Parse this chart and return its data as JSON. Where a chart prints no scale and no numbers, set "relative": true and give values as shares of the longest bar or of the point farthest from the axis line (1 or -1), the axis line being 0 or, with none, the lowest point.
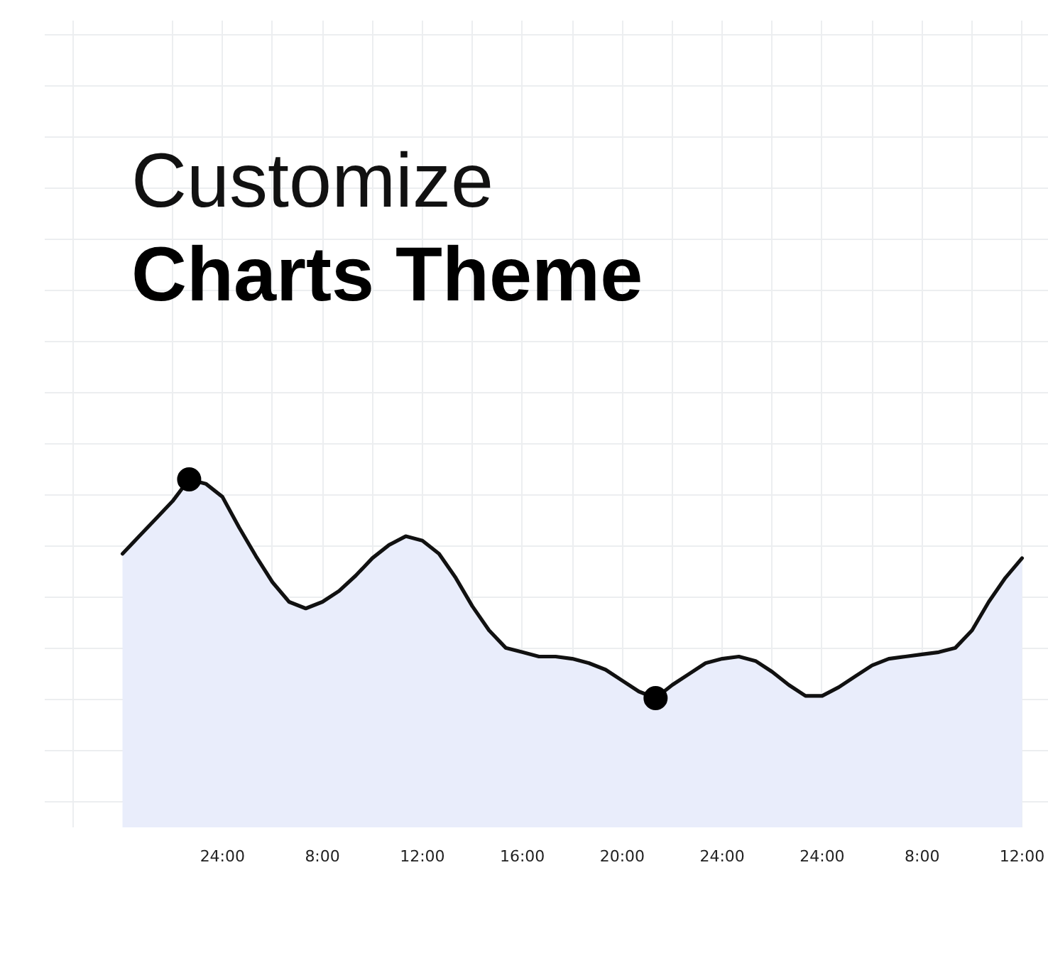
{
  "chart_data": {
    "type": "area",
    "title": "Customize",
    "subtitle": "Charts Theme",
    "relative": true,
    "tick_labels": "x",
    "grid": true,
    "categories": [
      null,
      null,
      null,
      null,
      null,
      null,
      "24:00",
      null,
      null,
      null,
      null,
      null,
      "8:00",
      null,
      null,
      null,
      null,
      null,
      "12:00",
      null,
      null,
      null,
      null,
      null,
      "16:00",
      null,
      null,
      null,
      null,
      null,
      "20:00",
      null,
      null,
      null,
      null,
      null,
      "24:00",
      null,
      null,
      null,
      null,
      null,
      "24:00",
      null,
      null,
      null,
      null,
      null,
      "8:00",
      null,
      null,
      null,
      null,
      null,
      "12:00"
    ],
    "series": [
      {
        "color": "#e9edfb",
        "values": [
          0.66,
          0.74,
          0.82,
          0.9,
          1.0,
          0.98,
          0.92,
          0.78,
          0.65,
          0.53,
          0.44,
          0.41,
          0.44,
          0.49,
          0.56,
          0.64,
          0.7,
          0.74,
          0.72,
          0.66,
          0.55,
          0.42,
          0.31,
          0.23,
          0.21,
          0.19,
          0.19,
          0.18,
          0.16,
          0.13,
          0.08,
          0.03,
          0.0,
          0.06,
          0.11,
          0.16,
          0.18,
          0.19,
          0.17,
          0.12,
          0.06,
          0.01,
          0.01,
          0.05,
          0.1,
          0.15,
          0.18,
          0.19,
          0.2,
          0.21,
          0.23,
          0.31,
          0.44,
          0.55,
          0.64
        ]
      },
      {
        "type": "scatter",
        "color": "#000000",
        "marker": "circle",
        "values": [
          null,
          null,
          null,
          null,
          1.0,
          null,
          null,
          null,
          null,
          null,
          null,
          null,
          null,
          null,
          null,
          null,
          null,
          null,
          null,
          null,
          null,
          null,
          null,
          null,
          null,
          null,
          null,
          null,
          null,
          null,
          null,
          null,
          0.0,
          null,
          null,
          null,
          null,
          null,
          null,
          null,
          null,
          null,
          null,
          null,
          null,
          null,
          null,
          null,
          null,
          null,
          null,
          null,
          null,
          null,
          null
        ]
      }
    ]
  }
}
